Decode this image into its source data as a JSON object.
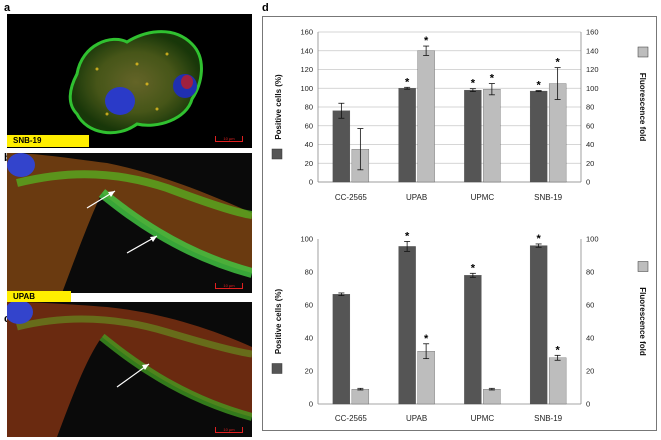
{
  "panels": {
    "a": {
      "letter": "a",
      "label": "SNB-19",
      "scale": "10 µm"
    },
    "b": {
      "letter": "b",
      "label": "UPAB",
      "scale": "10 µm"
    },
    "c": {
      "letter": "c",
      "scale": "10 µm"
    },
    "d": {
      "letter": "d"
    }
  },
  "colors": {
    "dark_bar": "#555555",
    "light_bar": "#bdbdbd"
  },
  "chart_data": [
    {
      "type": "bar",
      "categories": [
        "CC-2565",
        "UPAB",
        "UPMC",
        "SNB-19"
      ],
      "ylabel": "Positive cells (%)",
      "ylabel_right": "Fluorescence fold",
      "ylim": [
        0,
        160
      ],
      "yticks": [
        0,
        20,
        40,
        60,
        80,
        100,
        120,
        140,
        160
      ],
      "grid": true,
      "series": [
        {
          "values": [
            76,
            100,
            98,
            97
          ],
          "errors": [
            8,
            1,
            1.5,
            0.5
          ],
          "stars": [
            false,
            true,
            true,
            true
          ]
        },
        {
          "values": [
            35,
            140,
            99,
            105
          ],
          "errors": [
            22,
            5,
            6,
            17
          ],
          "stars": [
            false,
            true,
            true,
            true
          ]
        }
      ]
    },
    {
      "type": "bar",
      "categories": [
        "CC-2565",
        "UPAB",
        "UPMC",
        "SNB-19"
      ],
      "ylabel": "Positive cells (%)",
      "ylabel_right": "Fluorescence fold",
      "ylim": [
        0,
        100
      ],
      "yticks": [
        0,
        20,
        40,
        60,
        80,
        100
      ],
      "grid": false,
      "series": [
        {
          "values": [
            66.5,
            95.5,
            78,
            96
          ],
          "errors": [
            0.8,
            3,
            1.2,
            1
          ],
          "stars": [
            false,
            true,
            true,
            true
          ]
        },
        {
          "values": [
            9,
            32,
            9,
            28
          ],
          "errors": [
            0.5,
            4.5,
            0.5,
            1.5
          ],
          "stars": [
            false,
            true,
            false,
            true
          ]
        }
      ]
    }
  ]
}
